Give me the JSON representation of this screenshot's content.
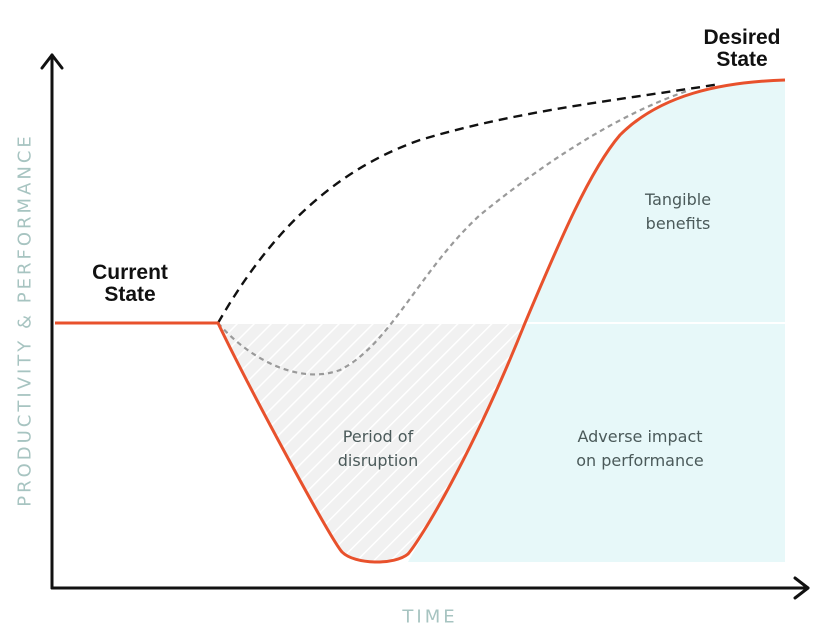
{
  "labels": {
    "current_state": [
      "Current",
      "State"
    ],
    "desired_state": [
      "Desired",
      "State"
    ],
    "period_of_disruption": [
      "Period of",
      "disruption"
    ],
    "tangible_benefits": [
      "Tangible",
      "benefits"
    ],
    "adverse_impact": [
      "Adverse impact",
      "on performance"
    ]
  },
  "axes": {
    "y_title": "PRODUCTIVITY & PERFORMANCE",
    "x_title": "TIME"
  },
  "colors": {
    "performance_curve": "#e8512c",
    "ideal_path": "#111111",
    "expected_path": "#9a9a9a",
    "benefit_fill": "#e7f8f9",
    "disruption_fill": "#f0f0f0",
    "axis": "#111111",
    "axis_title": "#a7c4c1"
  }
}
